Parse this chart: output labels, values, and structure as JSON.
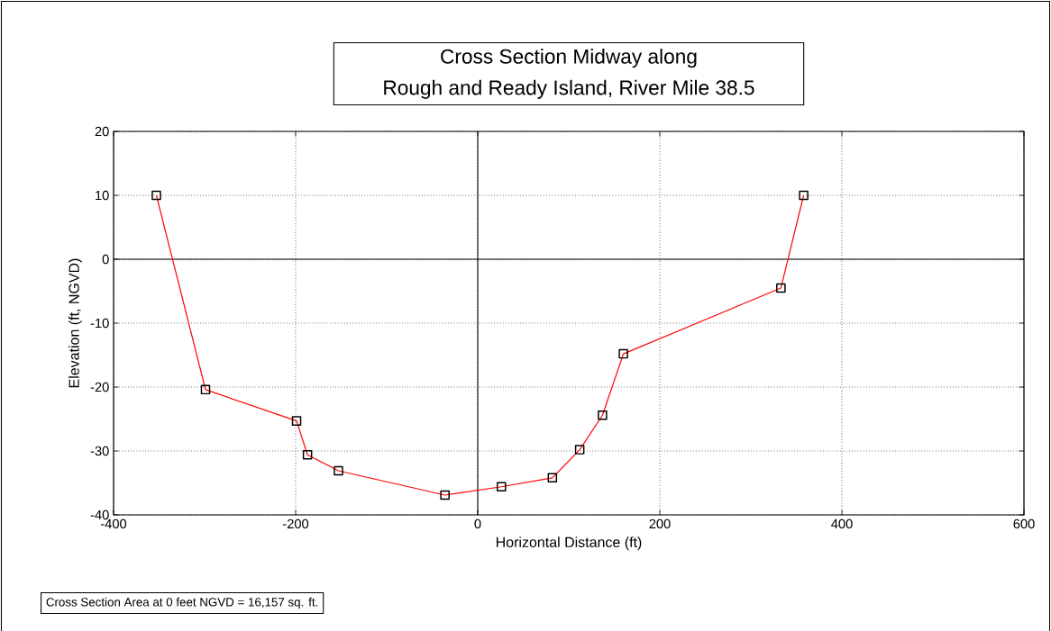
{
  "chart_data": {
    "type": "line",
    "title": "Cross Section Midway along Rough and Ready Island, River Mile 38.5",
    "xlabel": "Horizontal Distance (ft)",
    "ylabel": "Elevation (ft, NGVD)",
    "annotations": [
      "Cross Section Area at 0 feet NGVD = 16,157 sq. ft."
    ],
    "x": [
      -353,
      -299,
      -199,
      -187,
      -153,
      -36,
      26,
      82,
      112,
      137,
      160,
      333,
      358
    ],
    "series": [
      {
        "color": "#ff0000",
        "values": [
          10,
          -20.4,
          -25.3,
          -30.6,
          -33.1,
          -36.9,
          -35.6,
          -34.2,
          -29.8,
          -24.4,
          -14.8,
          -4.5,
          10
        ]
      }
    ],
    "xlim": [
      -400,
      600
    ],
    "ylim": [
      -40,
      20
    ],
    "xticks": [
      -400,
      -200,
      0,
      200,
      400,
      600
    ],
    "yticks": [
      -40,
      -30,
      -20,
      -10,
      0,
      10,
      20
    ],
    "grid": true,
    "marker": "square",
    "line_style": "solid"
  }
}
